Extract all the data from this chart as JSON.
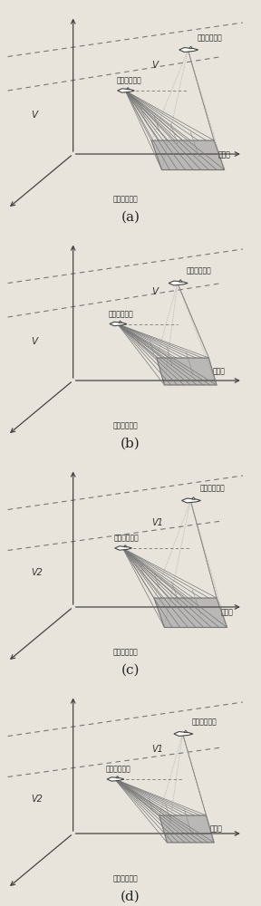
{
  "panels": [
    "(a)",
    "(b)",
    "(c)",
    "(d)"
  ],
  "text_transmitter": "发射声纳载体",
  "text_receiver": "接收声纳载体",
  "text_wavefront": "接收波束划分",
  "text_measurement": "测量区",
  "bg_color": "#e8e4dc",
  "line_color": "#666666",
  "axis_color": "#444444",
  "dashed_color": "#777777",
  "fill_color": "#999999",
  "font_size_label": 5.5,
  "font_size_panel": 11,
  "panels_ab_v": [
    "V",
    "V"
  ],
  "panels_cd_v": [
    "V1",
    "V2"
  ]
}
